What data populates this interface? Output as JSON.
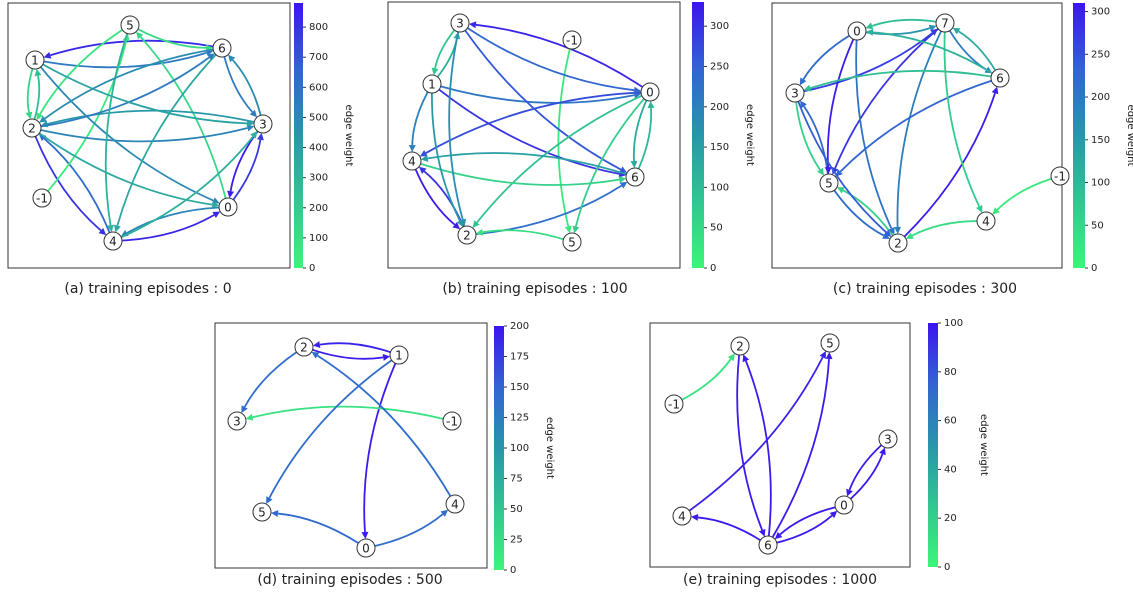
{
  "panels": [
    {
      "caption": "(a) training episodes : 0",
      "colorbar": {
        "label": "edge weight",
        "lim": [
          0,
          880
        ],
        "ticks": [
          0,
          100,
          200,
          300,
          400,
          500,
          600,
          700,
          800
        ]
      },
      "nodes": [
        "5",
        "1",
        "6",
        "2",
        "3",
        "-1",
        "0",
        "4"
      ],
      "edges": [
        {
          "from": "6",
          "to": "1",
          "weight": 820
        },
        {
          "from": "1",
          "to": "6",
          "weight": 560
        },
        {
          "from": "5",
          "to": "2",
          "weight": 80
        },
        {
          "from": "1",
          "to": "2",
          "weight": 150
        },
        {
          "from": "2",
          "to": "1",
          "weight": 260
        },
        {
          "from": "2",
          "to": "4",
          "weight": 800
        },
        {
          "from": "4",
          "to": "2",
          "weight": 620
        },
        {
          "from": "4",
          "to": "0",
          "weight": 830
        },
        {
          "from": "0",
          "to": "4",
          "weight": 520
        },
        {
          "from": "3",
          "to": "0",
          "weight": 860
        },
        {
          "from": "0",
          "to": "3",
          "weight": 780
        },
        {
          "from": "6",
          "to": "3",
          "weight": 560
        },
        {
          "from": "3",
          "to": "6",
          "weight": 480
        },
        {
          "from": "5",
          "to": "6",
          "weight": 120
        },
        {
          "from": "0",
          "to": "5",
          "weight": 140
        },
        {
          "from": "-1",
          "to": "5",
          "weight": 60
        },
        {
          "from": "2",
          "to": "3",
          "weight": 520
        },
        {
          "from": "3",
          "to": "2",
          "weight": 430
        },
        {
          "from": "1",
          "to": "0",
          "weight": 500
        },
        {
          "from": "6",
          "to": "4",
          "weight": 360
        },
        {
          "from": "2",
          "to": "6",
          "weight": 560
        },
        {
          "from": "1",
          "to": "3",
          "weight": 380
        },
        {
          "from": "5",
          "to": "4",
          "weight": 300
        },
        {
          "from": "6",
          "to": "2",
          "weight": 480
        },
        {
          "from": "2",
          "to": "0",
          "weight": 350
        },
        {
          "from": "4",
          "to": "3",
          "weight": 320
        }
      ]
    },
    {
      "caption": "(b) training episodes : 100",
      "colorbar": {
        "label": "edge weight",
        "lim": [
          0,
          330
        ],
        "ticks": [
          0,
          50,
          100,
          150,
          200,
          250,
          300
        ]
      },
      "nodes": [
        "3",
        "-1",
        "1",
        "0",
        "4",
        "6",
        "2",
        "5"
      ],
      "edges": [
        {
          "from": "0",
          "to": "3",
          "weight": 310
        },
        {
          "from": "3",
          "to": "1",
          "weight": 80
        },
        {
          "from": "1",
          "to": "3",
          "weight": 120
        },
        {
          "from": "1",
          "to": "4",
          "weight": 200
        },
        {
          "from": "4",
          "to": "2",
          "weight": 320
        },
        {
          "from": "2",
          "to": "4",
          "weight": 300
        },
        {
          "from": "-1",
          "to": "5",
          "weight": 20
        },
        {
          "from": "1",
          "to": "0",
          "weight": 220
        },
        {
          "from": "0",
          "to": "4",
          "weight": 270
        },
        {
          "from": "1",
          "to": "6",
          "weight": 300
        },
        {
          "from": "3",
          "to": "6",
          "weight": 260
        },
        {
          "from": "6",
          "to": "0",
          "weight": 110
        },
        {
          "from": "0",
          "to": "6",
          "weight": 130
        },
        {
          "from": "2",
          "to": "6",
          "weight": 230
        },
        {
          "from": "5",
          "to": "2",
          "weight": 40
        },
        {
          "from": "0",
          "to": "2",
          "weight": 90
        },
        {
          "from": "0",
          "to": "5",
          "weight": 70
        },
        {
          "from": "4",
          "to": "6",
          "weight": 60
        },
        {
          "from": "3",
          "to": "2",
          "weight": 180
        },
        {
          "from": "6",
          "to": "4",
          "weight": 150
        },
        {
          "from": "3",
          "to": "0",
          "weight": 240
        },
        {
          "from": "1",
          "to": "2",
          "weight": 160
        }
      ]
    },
    {
      "caption": "(c) training episodes : 300",
      "colorbar": {
        "label": "edge weight",
        "lim": [
          0,
          310
        ],
        "ticks": [
          0,
          50,
          100,
          150,
          200,
          250,
          300
        ]
      },
      "nodes": [
        "0",
        "7",
        "6",
        "3",
        "-1",
        "5",
        "4",
        "2"
      ],
      "edges": [
        {
          "from": "7",
          "to": "0",
          "weight": 90
        },
        {
          "from": "0",
          "to": "7",
          "weight": 160
        },
        {
          "from": "7",
          "to": "6",
          "weight": 200
        },
        {
          "from": "6",
          "to": "7",
          "weight": 120
        },
        {
          "from": "3",
          "to": "7",
          "weight": 270
        },
        {
          "from": "0",
          "to": "3",
          "weight": 220
        },
        {
          "from": "3",
          "to": "5",
          "weight": 60
        },
        {
          "from": "5",
          "to": "3",
          "weight": 230
        },
        {
          "from": "-1",
          "to": "4",
          "weight": 20
        },
        {
          "from": "4",
          "to": "2",
          "weight": 40
        },
        {
          "from": "2",
          "to": "6",
          "weight": 300
        },
        {
          "from": "5",
          "to": "2",
          "weight": 220
        },
        {
          "from": "2",
          "to": "5",
          "weight": 60
        },
        {
          "from": "7",
          "to": "5",
          "weight": 280
        },
        {
          "from": "0",
          "to": "5",
          "weight": 300
        },
        {
          "from": "0",
          "to": "2",
          "weight": 210
        },
        {
          "from": "7",
          "to": "2",
          "weight": 190
        },
        {
          "from": "6",
          "to": "3",
          "weight": 90
        },
        {
          "from": "6",
          "to": "5",
          "weight": 230
        },
        {
          "from": "7",
          "to": "4",
          "weight": 70
        },
        {
          "from": "6",
          "to": "0",
          "weight": 110
        },
        {
          "from": "3",
          "to": "2",
          "weight": 240
        }
      ]
    },
    {
      "caption": "(d) training episodes : 500",
      "colorbar": {
        "label": "edge weight",
        "lim": [
          0,
          200
        ],
        "ticks": [
          0,
          25,
          50,
          75,
          100,
          125,
          150,
          175,
          200
        ]
      },
      "nodes": [
        "2",
        "1",
        "3",
        "-1",
        "5",
        "4",
        "0"
      ],
      "edges": [
        {
          "from": "2",
          "to": "1",
          "weight": 195
        },
        {
          "from": "1",
          "to": "2",
          "weight": 190
        },
        {
          "from": "1",
          "to": "0",
          "weight": 195
        },
        {
          "from": "2",
          "to": "3",
          "weight": 140
        },
        {
          "from": "-1",
          "to": "3",
          "weight": 20
        },
        {
          "from": "1",
          "to": "5",
          "weight": 140
        },
        {
          "from": "4",
          "to": "2",
          "weight": 140
        },
        {
          "from": "0",
          "to": "5",
          "weight": 145
        },
        {
          "from": "0",
          "to": "4",
          "weight": 140
        }
      ]
    },
    {
      "caption": "(e) training episodes : 1000",
      "colorbar": {
        "label": "edge weight",
        "lim": [
          0,
          100
        ],
        "ticks": [
          0,
          20,
          40,
          60,
          80,
          100
        ]
      },
      "nodes": [
        "2",
        "5",
        "-1",
        "3",
        "4",
        "0",
        "6"
      ],
      "edges": [
        {
          "from": "-1",
          "to": "2",
          "weight": 10
        },
        {
          "from": "2",
          "to": "6",
          "weight": 98
        },
        {
          "from": "6",
          "to": "2",
          "weight": 98
        },
        {
          "from": "6",
          "to": "5",
          "weight": 98
        },
        {
          "from": "4",
          "to": "5",
          "weight": 95
        },
        {
          "from": "6",
          "to": "4",
          "weight": 98
        },
        {
          "from": "0",
          "to": "6",
          "weight": 98
        },
        {
          "from": "6",
          "to": "0",
          "weight": 98
        },
        {
          "from": "0",
          "to": "3",
          "weight": 98
        },
        {
          "from": "3",
          "to": "0",
          "weight": 98
        }
      ]
    }
  ]
}
